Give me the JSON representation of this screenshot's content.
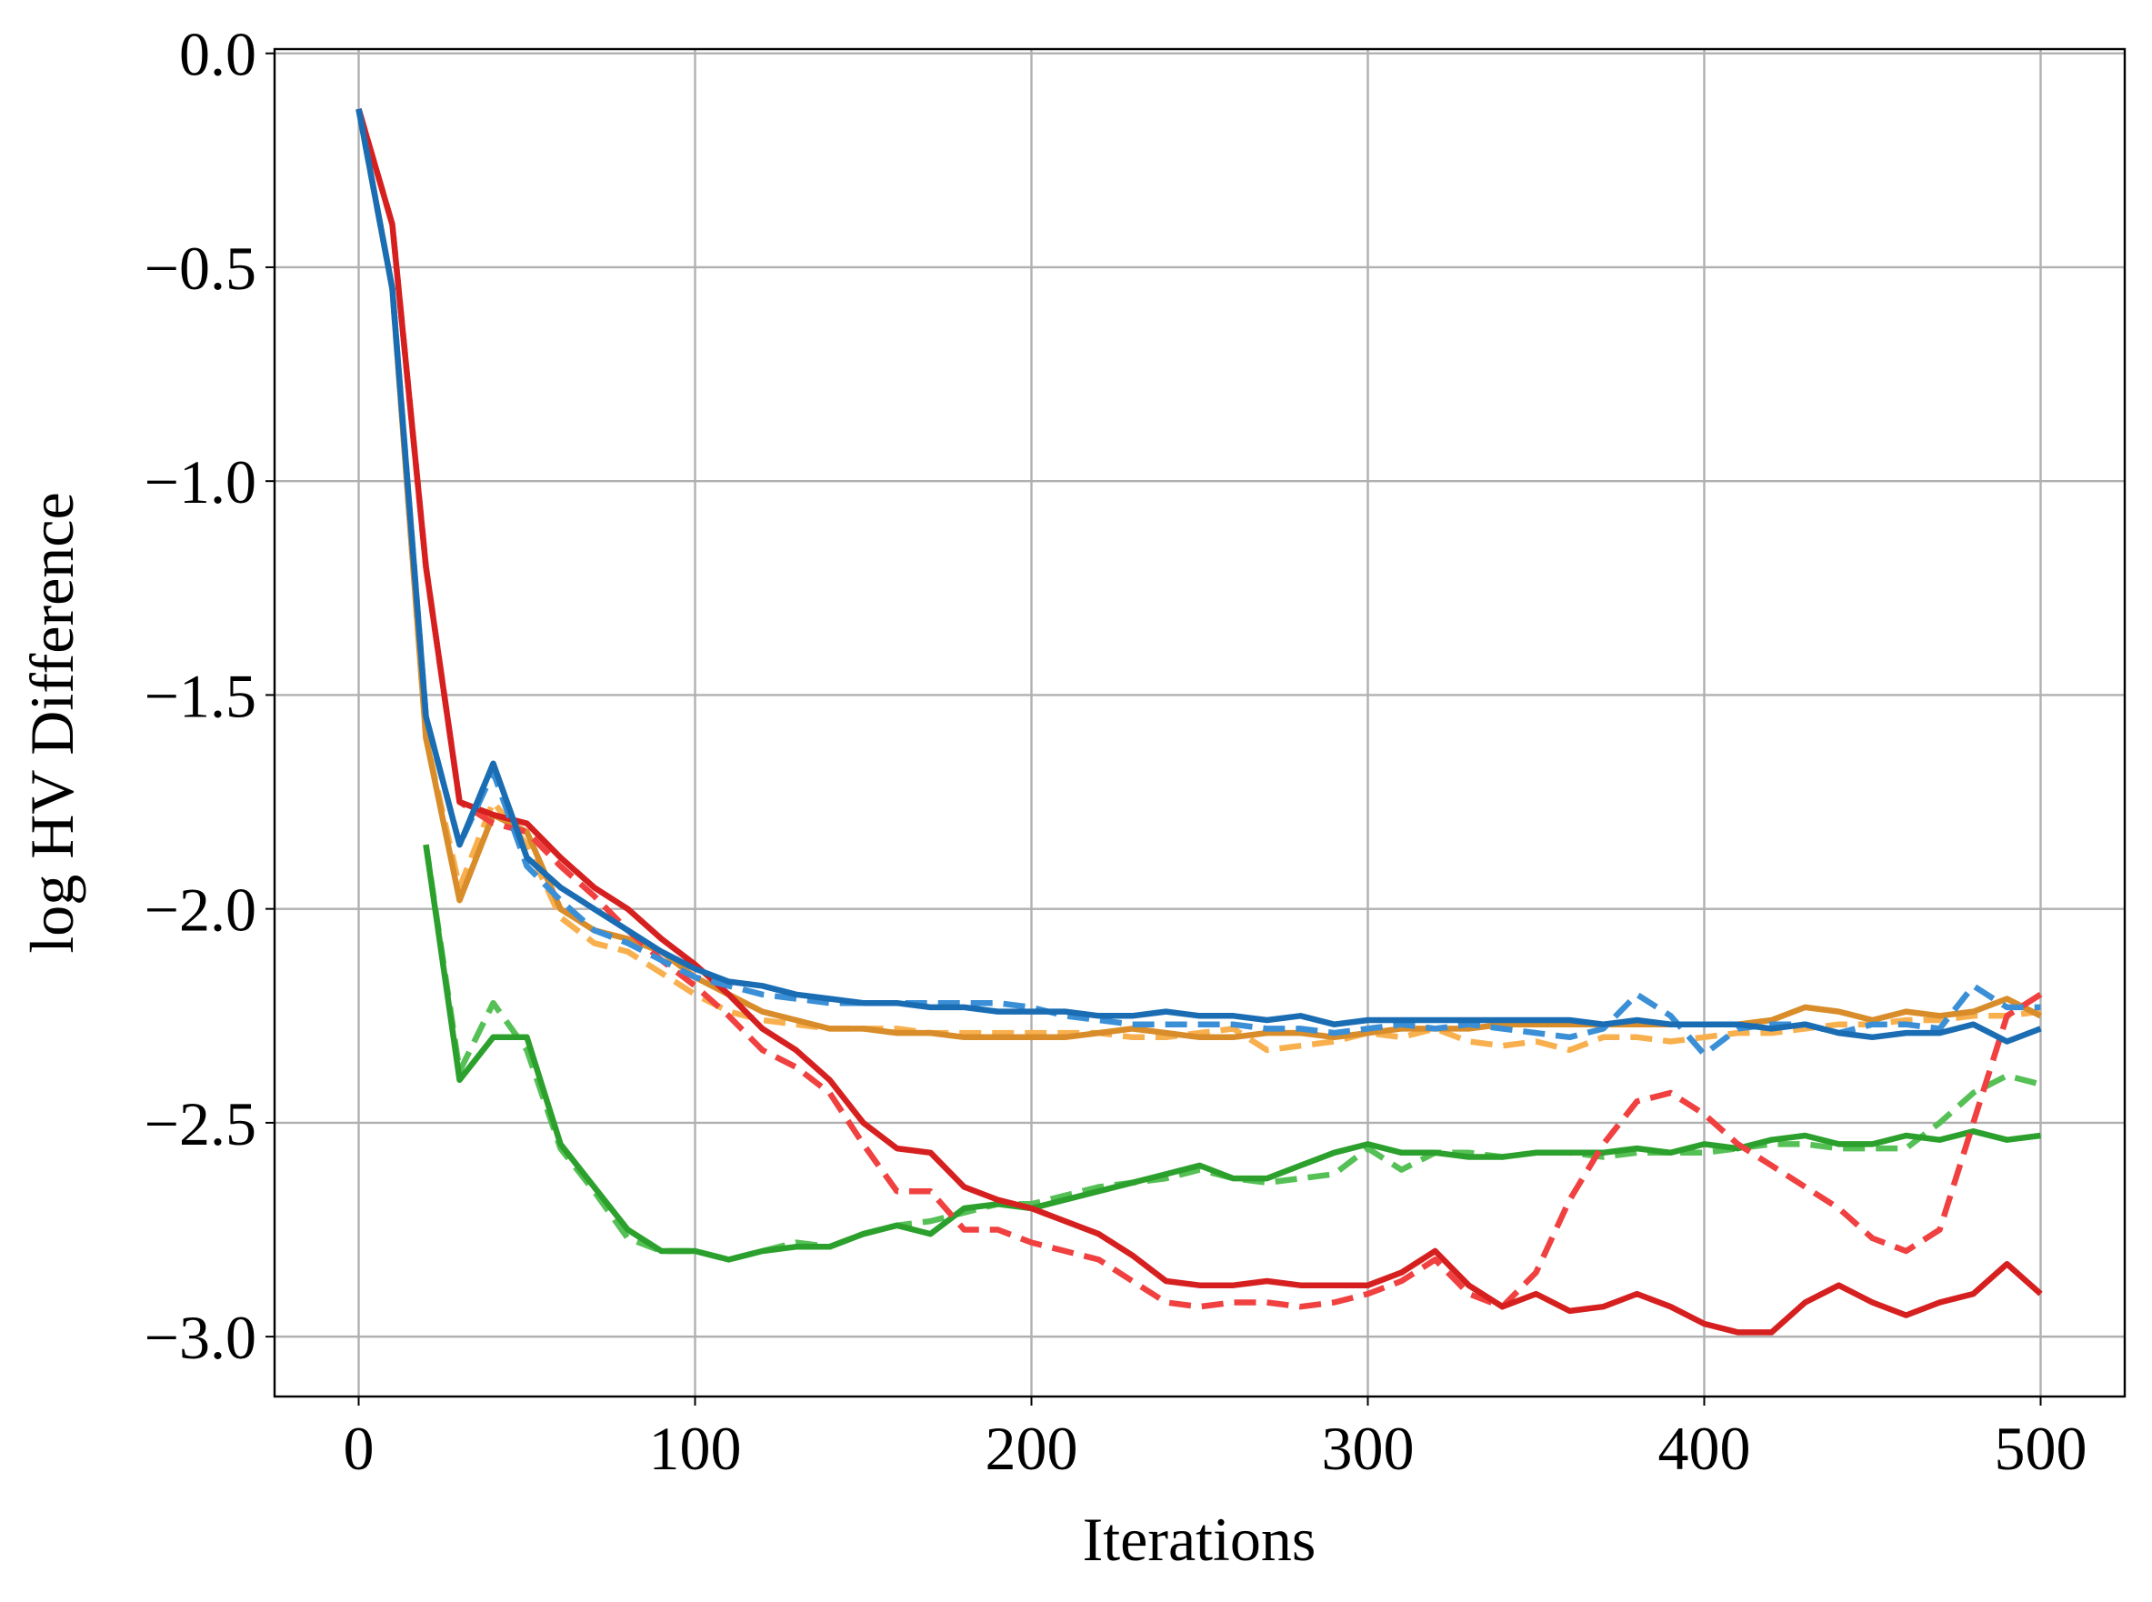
{
  "chart_data": {
    "type": "line",
    "x_label": "Iterations",
    "y_label": "log HV Difference",
    "x": [
      0,
      10,
      20,
      30,
      40,
      50,
      60,
      70,
      80,
      90,
      100,
      110,
      120,
      130,
      140,
      150,
      160,
      170,
      180,
      190,
      200,
      210,
      220,
      230,
      240,
      250,
      260,
      270,
      280,
      290,
      300,
      310,
      320,
      330,
      340,
      350,
      360,
      370,
      380,
      390,
      400,
      410,
      420,
      430,
      440,
      450,
      460,
      470,
      480,
      490,
      500
    ],
    "xlim": [
      -25,
      525
    ],
    "xticks": [
      0,
      100,
      200,
      300,
      400,
      500
    ],
    "ylim": [
      -3.14,
      0.01
    ],
    "yticks": [
      {
        "value": -3.0,
        "label": "−3.0"
      },
      {
        "value": -2.5,
        "label": "−2.5"
      },
      {
        "value": -2.0,
        "label": "−2.0"
      },
      {
        "value": -1.5,
        "label": "−1.5"
      },
      {
        "value": -1.0,
        "label": "−1.0"
      },
      {
        "value": -0.5,
        "label": "−0.5"
      },
      {
        "value": 0.0,
        "label": "0.0"
      }
    ],
    "grid": true,
    "series": [
      {
        "color": "#f8b04e",
        "dash": true,
        "values": [
          -0.13,
          -0.55,
          -1.6,
          -1.95,
          -1.75,
          -1.85,
          -2.02,
          -2.08,
          -2.1,
          -2.15,
          -2.2,
          -2.24,
          -2.26,
          -2.27,
          -2.28,
          -2.28,
          -2.28,
          -2.29,
          -2.29,
          -2.29,
          -2.29,
          -2.29,
          -2.29,
          -2.3,
          -2.3,
          -2.29,
          -2.28,
          -2.33,
          -2.32,
          -2.31,
          -2.29,
          -2.3,
          -2.28,
          -2.31,
          -2.32,
          -2.31,
          -2.33,
          -2.3,
          -2.3,
          -2.31,
          -2.3,
          -2.29,
          -2.29,
          -2.28,
          -2.27,
          -2.27,
          -2.26,
          -2.26,
          -2.25,
          -2.25,
          -2.24
        ]
      },
      {
        "color": "#d98c2a",
        "dash": false,
        "values": [
          -0.13,
          -0.55,
          -1.6,
          -1.98,
          -1.78,
          -1.82,
          -2.0,
          -2.05,
          -2.07,
          -2.1,
          -2.16,
          -2.2,
          -2.24,
          -2.26,
          -2.28,
          -2.28,
          -2.29,
          -2.29,
          -2.3,
          -2.3,
          -2.3,
          -2.3,
          -2.29,
          -2.28,
          -2.29,
          -2.3,
          -2.3,
          -2.29,
          -2.29,
          -2.3,
          -2.29,
          -2.28,
          -2.28,
          -2.28,
          -2.27,
          -2.27,
          -2.27,
          -2.27,
          -2.27,
          -2.27,
          -2.27,
          -2.27,
          -2.26,
          -2.23,
          -2.24,
          -2.26,
          -2.24,
          -2.25,
          -2.24,
          -2.21,
          -2.25
        ]
      },
      {
        "color": "#55c055",
        "dash": true,
        "values": [
          null,
          null,
          -1.85,
          -2.38,
          -2.22,
          -2.33,
          -2.56,
          -2.66,
          -2.77,
          -2.8,
          -2.8,
          -2.82,
          -2.8,
          -2.78,
          -2.79,
          -2.76,
          -2.74,
          -2.73,
          -2.71,
          -2.69,
          -2.69,
          -2.67,
          -2.65,
          -2.64,
          -2.63,
          -2.61,
          -2.63,
          -2.64,
          -2.63,
          -2.62,
          -2.56,
          -2.61,
          -2.57,
          -2.57,
          -2.58,
          -2.57,
          -2.57,
          -2.58,
          -2.57,
          -2.57,
          -2.57,
          -2.56,
          -2.55,
          -2.55,
          -2.56,
          -2.56,
          -2.56,
          -2.5,
          -2.43,
          -2.39,
          -2.41
        ]
      },
      {
        "color": "#2ca02c",
        "dash": false,
        "values": [
          null,
          null,
          -1.85,
          -2.4,
          -2.3,
          -2.3,
          -2.55,
          -2.65,
          -2.75,
          -2.8,
          -2.8,
          -2.82,
          -2.8,
          -2.79,
          -2.79,
          -2.76,
          -2.74,
          -2.76,
          -2.7,
          -2.69,
          -2.7,
          -2.68,
          -2.66,
          -2.64,
          -2.62,
          -2.6,
          -2.63,
          -2.63,
          -2.6,
          -2.57,
          -2.55,
          -2.57,
          -2.57,
          -2.58,
          -2.58,
          -2.57,
          -2.57,
          -2.57,
          -2.56,
          -2.57,
          -2.55,
          -2.56,
          -2.54,
          -2.53,
          -2.55,
          -2.55,
          -2.53,
          -2.54,
          -2.52,
          -2.54,
          -2.53
        ]
      },
      {
        "color": "#f04040",
        "dash": true,
        "values": [
          -0.13,
          -0.4,
          -1.2,
          -1.75,
          -1.8,
          -1.82,
          -1.9,
          -1.97,
          -2.05,
          -2.12,
          -2.18,
          -2.25,
          -2.33,
          -2.37,
          -2.43,
          -2.55,
          -2.66,
          -2.66,
          -2.75,
          -2.75,
          -2.78,
          -2.8,
          -2.82,
          -2.87,
          -2.92,
          -2.93,
          -2.92,
          -2.92,
          -2.93,
          -2.92,
          -2.9,
          -2.87,
          -2.82,
          -2.9,
          -2.93,
          -2.85,
          -2.68,
          -2.55,
          -2.45,
          -2.43,
          -2.48,
          -2.55,
          -2.6,
          -2.65,
          -2.7,
          -2.77,
          -2.8,
          -2.75,
          -2.5,
          -2.25,
          -2.2
        ]
      },
      {
        "color": "#d62020",
        "dash": false,
        "values": [
          -0.13,
          -0.4,
          -1.2,
          -1.75,
          -1.78,
          -1.8,
          -1.88,
          -1.95,
          -2.0,
          -2.07,
          -2.13,
          -2.2,
          -2.28,
          -2.33,
          -2.4,
          -2.5,
          -2.56,
          -2.57,
          -2.65,
          -2.68,
          -2.7,
          -2.73,
          -2.76,
          -2.81,
          -2.87,
          -2.88,
          -2.88,
          -2.87,
          -2.88,
          -2.88,
          -2.88,
          -2.85,
          -2.8,
          -2.88,
          -2.93,
          -2.9,
          -2.94,
          -2.93,
          -2.9,
          -2.93,
          -2.97,
          -2.99,
          -2.99,
          -2.92,
          -2.88,
          -2.92,
          -2.95,
          -2.92,
          -2.9,
          -2.83,
          -2.9
        ]
      },
      {
        "color": "#3a8fd6",
        "dash": true,
        "values": [
          -0.13,
          -0.55,
          -1.55,
          -1.85,
          -1.68,
          -1.9,
          -1.98,
          -2.05,
          -2.08,
          -2.12,
          -2.16,
          -2.18,
          -2.2,
          -2.21,
          -2.22,
          -2.22,
          -2.22,
          -2.22,
          -2.22,
          -2.22,
          -2.23,
          -2.25,
          -2.26,
          -2.27,
          -2.27,
          -2.27,
          -2.27,
          -2.28,
          -2.28,
          -2.29,
          -2.28,
          -2.27,
          -2.28,
          -2.27,
          -2.28,
          -2.29,
          -2.3,
          -2.28,
          -2.2,
          -2.25,
          -2.34,
          -2.28,
          -2.27,
          -2.27,
          -2.29,
          -2.27,
          -2.27,
          -2.28,
          -2.18,
          -2.23,
          -2.23
        ]
      },
      {
        "color": "#1a6db3",
        "dash": false,
        "values": [
          -0.13,
          -0.55,
          -1.55,
          -1.85,
          -1.66,
          -1.88,
          -1.95,
          -2.0,
          -2.05,
          -2.1,
          -2.14,
          -2.17,
          -2.18,
          -2.2,
          -2.21,
          -2.22,
          -2.22,
          -2.23,
          -2.23,
          -2.24,
          -2.24,
          -2.24,
          -2.25,
          -2.25,
          -2.24,
          -2.25,
          -2.25,
          -2.26,
          -2.25,
          -2.27,
          -2.26,
          -2.26,
          -2.26,
          -2.26,
          -2.26,
          -2.26,
          -2.26,
          -2.27,
          -2.26,
          -2.27,
          -2.27,
          -2.27,
          -2.28,
          -2.27,
          -2.29,
          -2.3,
          -2.29,
          -2.29,
          -2.27,
          -2.31,
          -2.28
        ]
      }
    ]
  }
}
